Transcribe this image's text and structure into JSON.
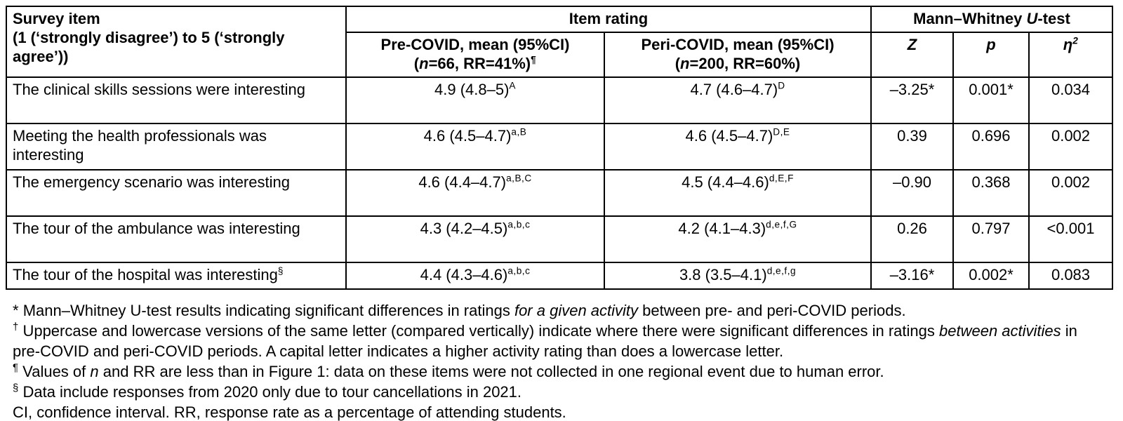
{
  "table": {
    "header": {
      "survey_item_line1": "Survey item",
      "survey_item_line2": "(1 (‘strongly disagree’) to 5 (‘strongly agree’))",
      "item_rating": "Item rating",
      "mw_prefix": "Mann–Whitney ",
      "mw_u": "U",
      "mw_suffix": "-test",
      "pre_line1": "Pre-COVID, mean (95%CI)",
      "pre_open": "(",
      "pre_n": "n",
      "pre_rest": "=66, RR=41%)",
      "pre_sup": "¶",
      "peri_line1": "Peri-COVID, mean (95%CI)",
      "peri_open": "(",
      "peri_n": "n",
      "peri_rest": "=200, RR=60%)",
      "z_label": "Z",
      "p_label": "p",
      "eta_label": "η",
      "eta_sup": "2"
    },
    "rows": [
      {
        "item": "The clinical skills sessions were interesting",
        "item_sup": "",
        "pre": "4.9 (4.8–5)",
        "pre_sup": "A",
        "peri": "4.7 (4.6–4.7)",
        "peri_sup": "D",
        "z": "–3.25*",
        "p": "0.001*",
        "eta2": "0.034"
      },
      {
        "item": "Meeting the health professionals was interesting",
        "item_sup": "",
        "pre": "4.6 (4.5–4.7)",
        "pre_sup": "a,B",
        "peri": "4.6 (4.5–4.7)",
        "peri_sup": "D,E",
        "z": "0.39",
        "p": "0.696",
        "eta2": "0.002"
      },
      {
        "item": "The emergency scenario was interesting",
        "item_sup": "",
        "pre": "4.6 (4.4–4.7)",
        "pre_sup": "a,B,C",
        "peri": "4.5 (4.4–4.6)",
        "peri_sup": "d,E,F",
        "z": "–0.90",
        "p": "0.368",
        "eta2": "0.002"
      },
      {
        "item": "The tour of the ambulance was interesting",
        "item_sup": "",
        "pre": "4.3 (4.2–4.5)",
        "pre_sup": "a,b,c",
        "peri": "4.2 (4.1–4.3)",
        "peri_sup": "d,e,f,G",
        "z": "0.26",
        "p": "0.797",
        "eta2": "<0.001"
      },
      {
        "item": "The tour of the hospital was interesting",
        "item_sup": "§",
        "pre": "4.4 (4.3–4.6)",
        "pre_sup": "a,b,c",
        "peri": "3.8 (3.5–4.1)",
        "peri_sup": "d,e,f,g",
        "z": "–3.16*",
        "p": "0.002*",
        "eta2": "0.083"
      }
    ]
  },
  "footnotes": {
    "fn1": {
      "marker": "*",
      "pre": "Mann–Whitney U-test results indicating significant differences in ratings ",
      "italic": "for a given activity",
      "post": " between pre- and peri-COVID periods."
    },
    "fn2": {
      "marker": "†",
      "pre": "Uppercase and lowercase versions of the same letter (compared vertically) indicate where there were significant differences in ratings ",
      "italic": "between activities",
      "post": " in pre-COVID and peri-COVID periods. A capital letter indicates a higher activity rating than does a lowercase letter."
    },
    "fn3": {
      "marker": "¶",
      "pre": "Values of ",
      "italic": "n",
      "post": " and RR are less than in Figure 1: data on these items were not collected in one regional event due to human error."
    },
    "fn4": {
      "marker": "§",
      "pre": "Data include responses from 2020 only due to tour cancellations in 2021.",
      "italic": "",
      "post": ""
    },
    "fn5": {
      "marker": "",
      "pre": "CI, confidence interval. RR, response rate as a percentage of attending students.",
      "italic": "",
      "post": ""
    }
  },
  "colors": {
    "text": "#000000",
    "border": "#000000",
    "background": "#ffffff"
  }
}
